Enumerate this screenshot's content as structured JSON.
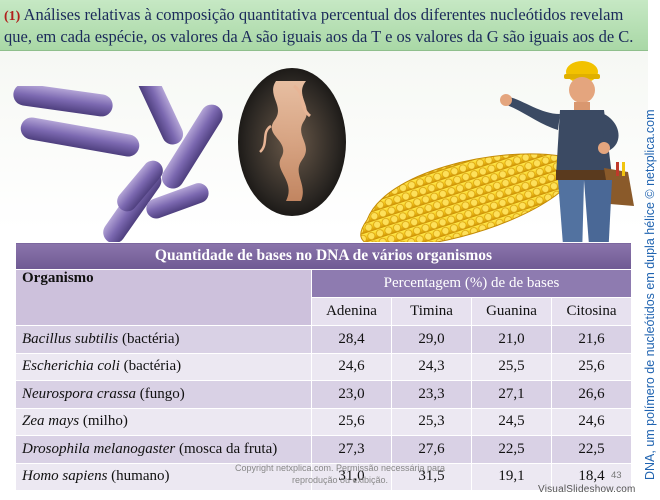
{
  "title": {
    "number": "(1)",
    "text": " Análises relativas à composição quantitativa percentual dos diferentes nucleótidos revelam que, em cada espécie, os valores da A são iguais aos da T e os valores da G são iguais aos de C."
  },
  "side_caption": "DNA, um polímero de nucleótidos em dupla hélice © netxplica.com",
  "table": {
    "caption": "Quantidade de bases no DNA de vários organismos",
    "org_header": "Organismo",
    "pct_header": "Percentagem (%) de de bases",
    "bases": [
      "Adenina",
      "Timina",
      "Guanina",
      "Citosina"
    ],
    "rows": [
      {
        "sci": "Bacillus subtilis",
        "common": " (bactéria)",
        "values": [
          "28,4",
          "29,0",
          "21,0",
          "21,6"
        ]
      },
      {
        "sci": "Escherichia coli",
        "common": " (bactéria)",
        "values": [
          "24,6",
          "24,3",
          "25,5",
          "25,6"
        ]
      },
      {
        "sci": "Neurospora crassa",
        "common": " (fungo)",
        "values": [
          "23,0",
          "23,3",
          "27,1",
          "26,6"
        ]
      },
      {
        "sci": "Zea mays",
        "common": " (milho)",
        "values": [
          "25,6",
          "25,3",
          "24,5",
          "24,6"
        ]
      },
      {
        "sci": "Drosophila melanogaster",
        "common": " (mosca da fruta)",
        "values": [
          "27,3",
          "27,6",
          "22,5",
          "22,5"
        ]
      },
      {
        "sci": "Homo sapiens",
        "common": " (humano)",
        "values": [
          "31,0",
          "31,5",
          "19,1",
          "18,4"
        ]
      }
    ]
  },
  "copyright": "Copyright netxplica.com. Permissão necessária para reprodução ou exibição.",
  "page_number": "43",
  "watermark": "VisualSlideshow.com",
  "colors": {
    "title_bg": "#b8e0b5",
    "title_text": "#1b2a5a",
    "title_number": "#b0201c",
    "table_header": "#7a65a0",
    "row_dark": "#d9d1e5",
    "row_light": "#ece8f2",
    "side_caption": "#1f63b0"
  }
}
